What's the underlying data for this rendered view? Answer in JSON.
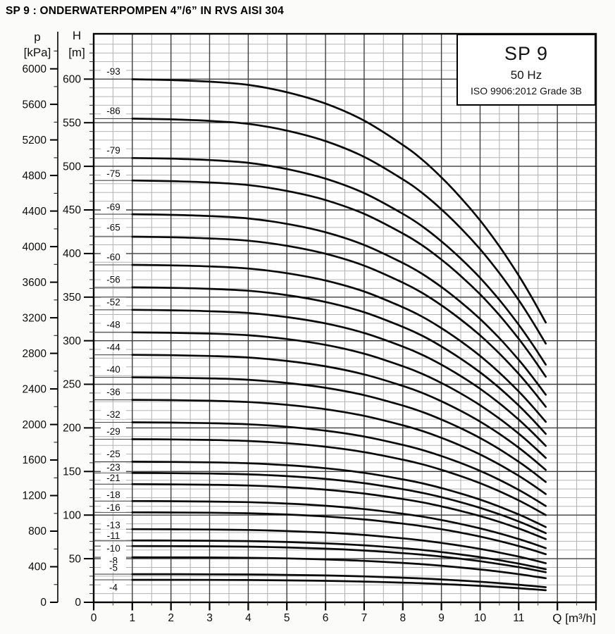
{
  "title": "SP 9 : ONDERWATERPOMPEN 4”/6” IN RVS AISI 304",
  "legend": {
    "model": "SP 9",
    "frequency": "50 Hz",
    "standard": "ISO 9906:2012 Grade 3B"
  },
  "axes": {
    "pressure": {
      "name": "p",
      "unit": "[kPa]",
      "ticks": [
        6000,
        5600,
        5200,
        4800,
        4400,
        4000,
        3600,
        3200,
        2800,
        2400,
        2000,
        1600,
        1200,
        800,
        400,
        0
      ],
      "minor_step": 200
    },
    "head": {
      "name": "H",
      "unit": "[m]",
      "ticks": [
        600,
        550,
        500,
        450,
        400,
        350,
        300,
        250,
        200,
        150,
        100,
        50,
        0
      ],
      "minor_step": 10
    },
    "flow": {
      "unit_label": "Q [m³/h]",
      "ticks": [
        0,
        1,
        2,
        3,
        4,
        5,
        6,
        7,
        8,
        9,
        10,
        11
      ],
      "minor_step": 0.5
    }
  },
  "chart_data": {
    "type": "line",
    "title": "SP 9, 50 Hz submersible pump: head vs flow, one curve per stage count",
    "xlabel": "Q [m³/h]",
    "ylabel": "H [m] (companion pressure scale p [kPa])",
    "xlim": [
      0,
      13
    ],
    "ylim": [
      0,
      650
    ],
    "grid": {
      "x_minor": 0.5,
      "x_major": 1,
      "y_minor_m": 10,
      "y_major_m": 50
    },
    "curve_flow_span": {
      "thin_from": 0.0,
      "thick_from": 1.0,
      "thick_to": 11.7
    },
    "per_stage_head_curve": {
      "Q_m3h": [
        0,
        1,
        2,
        3,
        4,
        5,
        6,
        7,
        8,
        8.5,
        9,
        9.5,
        10,
        10.5,
        11,
        11.35,
        11.7
      ],
      "head_m_per_stage": [
        6.45,
        6.45,
        6.44,
        6.42,
        6.38,
        6.29,
        6.15,
        5.94,
        5.64,
        5.46,
        5.24,
        4.99,
        4.71,
        4.39,
        4.03,
        3.75,
        3.45
      ]
    },
    "series": [
      {
        "label": "-93",
        "stages": 93,
        "label_dy": -11
      },
      {
        "label": "-86",
        "stages": 86,
        "label_dy": -11
      },
      {
        "label": "-79",
        "stages": 79,
        "label_dy": -11
      },
      {
        "label": "-75",
        "stages": 75,
        "label_dy": -10
      },
      {
        "label": "-69",
        "stages": 69,
        "label_dy": -10
      },
      {
        "label": "-65",
        "stages": 65,
        "label_dy": -13
      },
      {
        "label": "-60",
        "stages": 60,
        "label_dy": -11
      },
      {
        "label": "-56",
        "stages": 56,
        "label_dy": -11
      },
      {
        "label": "-52",
        "stages": 52,
        "label_dy": -11
      },
      {
        "label": "-48",
        "stages": 48,
        "label_dy": -11
      },
      {
        "label": "-44",
        "stages": 44,
        "label_dy": -11
      },
      {
        "label": "-40",
        "stages": 40,
        "label_dy": -11
      },
      {
        "label": "-36",
        "stages": 36,
        "label_dy": -11
      },
      {
        "label": "-32",
        "stages": 32,
        "label_dy": -11
      },
      {
        "label": "-29",
        "stages": 29,
        "label_dy": -11
      },
      {
        "label": "-25",
        "stages": 25,
        "label_dy": -11
      },
      {
        "label": "-23",
        "stages": 23,
        "label_dy": -8
      },
      {
        "label": "-21",
        "stages": 21,
        "label_dy": -9
      },
      {
        "label": "-18",
        "stages": 18,
        "label_dy": -9
      },
      {
        "label": "-16",
        "stages": 16,
        "label_dy": -7
      },
      {
        "label": "-13",
        "stages": 13,
        "label_dy": -6
      },
      {
        "label": "-11",
        "stages": 11,
        "label_dy": -7
      },
      {
        "label": "-10",
        "stages": 10,
        "label_dy": 3
      },
      {
        "label": "-8",
        "stages": 8,
        "label_dy": 5
      },
      {
        "label": "-5",
        "stages": 5,
        "label_dy": -9
      },
      {
        "label": "-4",
        "stages": 4,
        "label_dy": 11
      }
    ]
  }
}
